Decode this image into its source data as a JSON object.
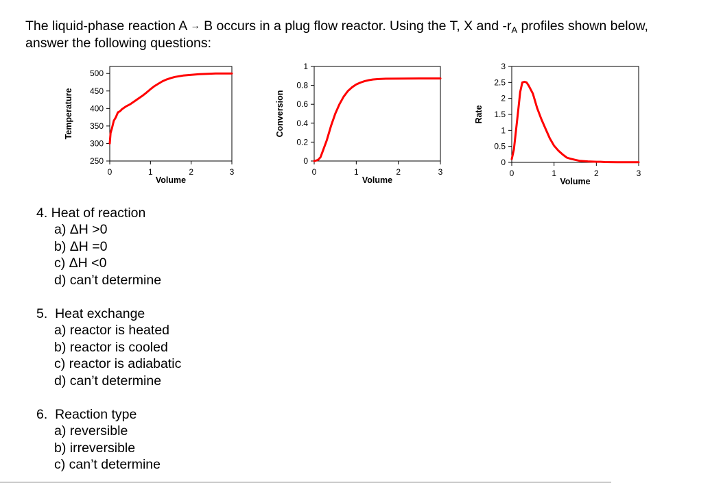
{
  "intro": {
    "line1_a": "The liquid-phase reaction A",
    "arrow": "→",
    "line1_b": " B occurs in a plug flow reactor.  Using the T, X and -r",
    "subscript": "A",
    "line1_c": " profiles shown below,",
    "line2": "answer the following questions:"
  },
  "chart_data": [
    {
      "type": "line",
      "title": "",
      "xlabel": "Volume",
      "ylabel": "Temperature",
      "xlim": [
        0,
        3
      ],
      "ylim": [
        250,
        520
      ],
      "xticks": [
        0,
        1,
        2,
        3
      ],
      "yticks": [
        250,
        300,
        350,
        400,
        450,
        500
      ],
      "grid": false,
      "legend": null,
      "color": "#ff0000",
      "series": [
        {
          "name": "T",
          "x": [
            0,
            0.02,
            0.05,
            0.1,
            0.15,
            0.2,
            0.25,
            0.3,
            0.4,
            0.5,
            0.6,
            0.7,
            0.8,
            0.9,
            1.0,
            1.1,
            1.2,
            1.3,
            1.4,
            1.5,
            1.6,
            1.7,
            1.8,
            2.0,
            2.2,
            2.4,
            2.6,
            2.8,
            3.0
          ],
          "y": [
            300,
            330,
            342,
            365,
            375,
            389,
            392,
            398,
            406,
            412,
            420,
            428,
            436,
            445,
            455,
            464,
            471,
            478,
            483,
            487,
            490,
            492,
            494,
            496,
            498,
            499,
            500,
            500,
            500
          ]
        }
      ]
    },
    {
      "type": "line",
      "title": "",
      "xlabel": "Volume",
      "ylabel": "Conversion",
      "xlim": [
        0,
        3
      ],
      "ylim": [
        0,
        1
      ],
      "xticks": [
        0,
        1,
        2,
        3
      ],
      "yticks": [
        0,
        0.2,
        0.4,
        0.6,
        0.8,
        1
      ],
      "grid": false,
      "legend": null,
      "color": "#ff0000",
      "series": [
        {
          "name": "X",
          "x": [
            0,
            0.05,
            0.1,
            0.15,
            0.2,
            0.3,
            0.4,
            0.5,
            0.6,
            0.7,
            0.8,
            0.9,
            1.0,
            1.1,
            1.2,
            1.3,
            1.4,
            1.5,
            1.7,
            2.0,
            2.5,
            3.0
          ],
          "y": [
            0,
            0.005,
            0.015,
            0.04,
            0.1,
            0.22,
            0.37,
            0.5,
            0.6,
            0.68,
            0.74,
            0.78,
            0.81,
            0.83,
            0.845,
            0.855,
            0.862,
            0.866,
            0.87,
            0.872,
            0.873,
            0.873
          ]
        }
      ]
    },
    {
      "type": "line",
      "title": "",
      "xlabel": "Volume",
      "ylabel": "Rate",
      "xlim": [
        0,
        3
      ],
      "ylim": [
        0,
        3
      ],
      "xticks": [
        0,
        1,
        2,
        3
      ],
      "yticks": [
        0,
        0.5,
        1,
        1.5,
        2,
        2.5,
        3
      ],
      "grid": false,
      "legend": null,
      "color": "#ff0000",
      "series": [
        {
          "name": "-rA",
          "x": [
            0,
            0.05,
            0.1,
            0.15,
            0.2,
            0.25,
            0.3,
            0.35,
            0.4,
            0.5,
            0.6,
            0.7,
            0.8,
            0.9,
            1.0,
            1.1,
            1.2,
            1.3,
            1.4,
            1.5,
            1.6,
            1.8,
            2.0,
            2.1,
            2.2,
            2.5,
            3.0
          ],
          "y": [
            0.1,
            0.4,
            1.0,
            1.6,
            2.2,
            2.5,
            2.52,
            2.5,
            2.4,
            2.15,
            1.7,
            1.35,
            1.05,
            0.75,
            0.52,
            0.37,
            0.25,
            0.15,
            0.11,
            0.08,
            0.05,
            0.03,
            0.02,
            0.02,
            0.01,
            0.005,
            0.005
          ]
        }
      ]
    }
  ],
  "questions": [
    {
      "number": "4.",
      "title": " Heat of reaction",
      "options": [
        "a) ΔH >0",
        "b) ΔH =0",
        "c) ΔH <0",
        "d) can’t determine"
      ]
    },
    {
      "number": "5.",
      "title": "  Heat exchange",
      "options": [
        "a) reactor is heated",
        "b) reactor is cooled",
        "c) reactor is adiabatic",
        "d) can’t determine"
      ]
    },
    {
      "number": "6.",
      "title": "  Reaction type",
      "options": [
        "a) reversible",
        "b) irreversible",
        "c) can’t determine"
      ]
    }
  ]
}
